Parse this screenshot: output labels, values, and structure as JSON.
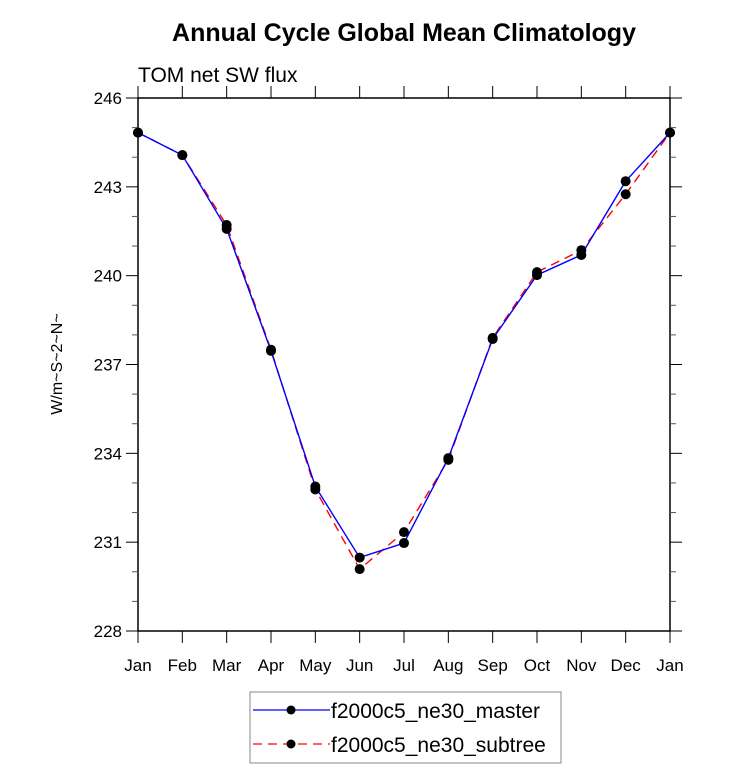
{
  "chart_data": {
    "type": "line",
    "title": "Annual Cycle Global Mean Climatology",
    "subtitle": "TOM net SW flux",
    "xlabel": "",
    "ylabel": "W/m~S~2~N~",
    "categories": [
      "Jan",
      "Feb",
      "Mar",
      "Apr",
      "May",
      "Jun",
      "Jul",
      "Aug",
      "Sep",
      "Oct",
      "Nov",
      "Dec",
      "Jan"
    ],
    "ylim": [
      228,
      246
    ],
    "yticks": [
      228,
      231,
      234,
      237,
      240,
      243,
      246
    ],
    "ytick_labels": [
      "228",
      "231",
      "234",
      "237",
      "240",
      "243",
      "246"
    ],
    "yminor_step": 1,
    "grid": false,
    "legend_position": "bottom-center",
    "series": [
      {
        "name": "f2000c5_ne30_master",
        "color": "#0000ff",
        "line_style": "solid",
        "marker": "filled-circle",
        "marker_color": "#000000",
        "values": [
          244.83,
          244.07,
          241.58,
          237.46,
          232.88,
          230.48,
          230.97,
          233.84,
          237.86,
          240.02,
          240.7,
          243.19,
          244.83
        ]
      },
      {
        "name": "f2000c5_ne30_subtree",
        "color": "#ff0000",
        "line_style": "dashed",
        "marker": "filled-circle",
        "marker_color": "#000000",
        "values": [
          244.83,
          244.07,
          241.71,
          237.5,
          232.78,
          230.09,
          231.34,
          233.78,
          237.9,
          240.12,
          240.86,
          242.75,
          244.83
        ]
      }
    ]
  }
}
